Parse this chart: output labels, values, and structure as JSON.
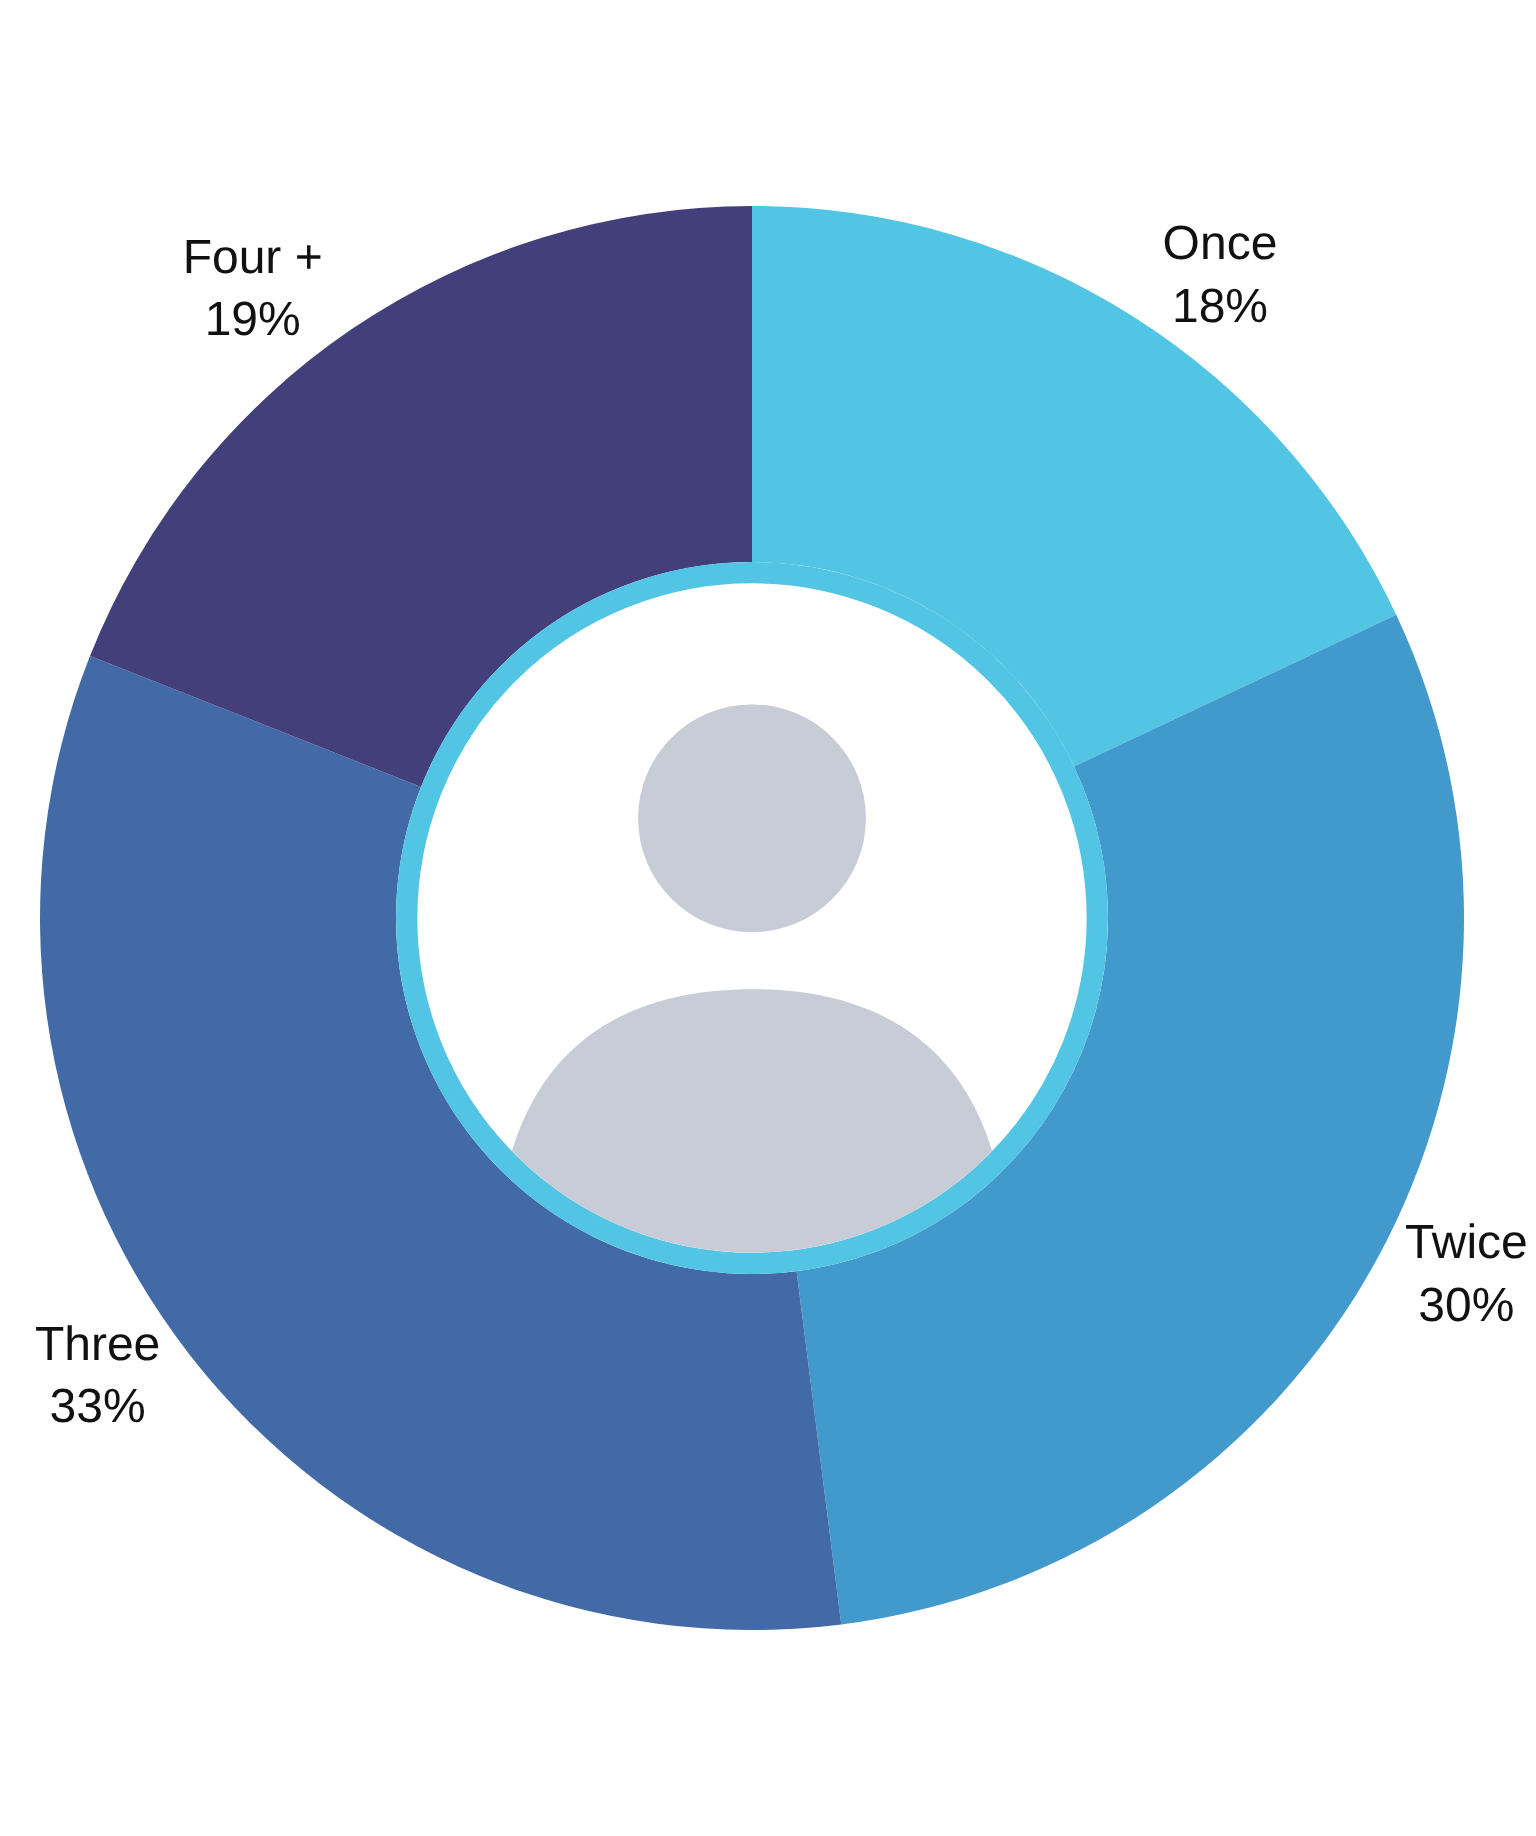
{
  "chart_data": {
    "type": "donut",
    "categories": [
      "Once",
      "Twice",
      "Three",
      "Four +"
    ],
    "values": [
      18,
      30,
      33,
      19
    ],
    "value_labels": [
      "18%",
      "30%",
      "33%",
      "19%"
    ],
    "colors": [
      "#52c5e4",
      "#4299cc",
      "#416aa6",
      "#433f7a"
    ],
    "legend": false
  }
}
